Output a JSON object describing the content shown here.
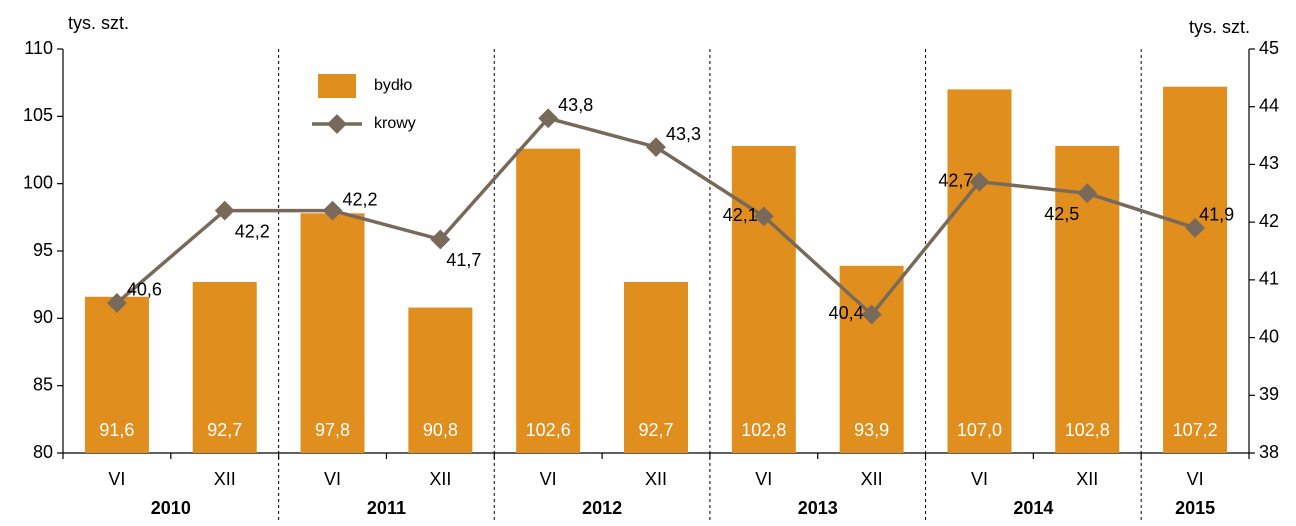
{
  "chart_data": {
    "type": "bar_line",
    "y_axis_label": "tys. szt.",
    "y2_axis_label": "tys. szt.",
    "categories": [
      "VI",
      "XII",
      "VI",
      "XII",
      "VI",
      "XII",
      "VI",
      "XII",
      "VI",
      "XII",
      "VI"
    ],
    "x_groups": [
      "2010",
      "2011",
      "2012",
      "2013",
      "2014",
      "2015"
    ],
    "ylim": [
      80,
      110
    ],
    "yticks": [
      80,
      85,
      90,
      95,
      100,
      105,
      110
    ],
    "y2lim": [
      38,
      45
    ],
    "y2ticks": [
      38,
      39,
      40,
      41,
      42,
      43,
      44,
      45
    ],
    "series": [
      {
        "name": "bydło",
        "color": "#e08e1e",
        "kind": "bar",
        "values": [
          91.6,
          92.7,
          97.8,
          90.8,
          102.6,
          92.7,
          102.8,
          93.9,
          107.0,
          102.8,
          107.2
        ],
        "value_labels": [
          "91,6",
          "92,7",
          "97,8",
          "90,8",
          "102,6",
          "92,7",
          "102,8",
          "93,9",
          "107,0",
          "102,8",
          "107,2"
        ]
      },
      {
        "name": "krowy",
        "color": "#776a5a",
        "kind": "line",
        "axis": "y2",
        "values": [
          40.6,
          42.2,
          42.2,
          41.7,
          43.8,
          43.3,
          42.1,
          40.4,
          42.7,
          42.5,
          41.9
        ],
        "value_labels": [
          "40,6",
          "42,2",
          "42,2",
          "41,7",
          "43,8",
          "43,3",
          "42,1",
          "40,4",
          "42,7",
          "42,5",
          "41,9"
        ]
      }
    ],
    "legend": "top-left"
  }
}
